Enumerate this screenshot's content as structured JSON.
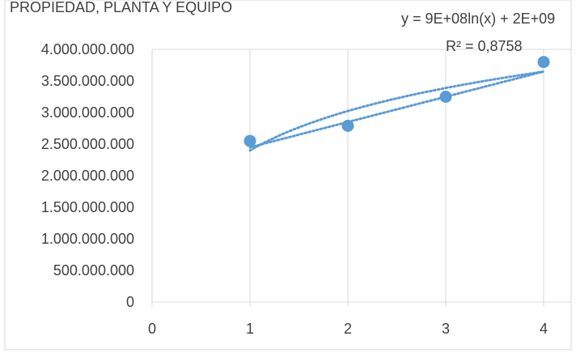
{
  "chart_data": {
    "type": "scatter",
    "title": "PROPIEDAD, PLANTA Y EQUIPO",
    "xlabel": "",
    "ylabel": "",
    "xlim": [
      0,
      4
    ],
    "ylim": [
      0,
      4000000000
    ],
    "x_ticks": [
      "0",
      "1",
      "2",
      "3",
      "4"
    ],
    "y_ticks": [
      "0",
      "500.000.000",
      "1.000.000.000",
      "1.500.000.000",
      "2.000.000.000",
      "2.500.000.000",
      "3.000.000.000",
      "3.500.000.000",
      "4.000.000.000"
    ],
    "grid": "vertical",
    "series": [
      {
        "x": [
          1,
          2,
          3,
          4
        ],
        "y": [
          2550000000,
          2790000000,
          3250000000,
          3800000000
        ]
      }
    ],
    "trendlines": [
      {
        "type": "logarithmic",
        "a": 900000000,
        "b": 2400000000
      },
      {
        "type": "linear",
        "slope": 400000000,
        "intercept": 2050000000
      }
    ],
    "annotations": {
      "equation": "y = 9E+08ln(x) + 2E+09",
      "r_squared": "R² = 0,8758"
    },
    "colors": {
      "marker": "#5b9bd5",
      "trend": "#5b9bd5",
      "grid": "#d9d9d9",
      "text": "#404040",
      "border": "#d9d9d9"
    }
  }
}
